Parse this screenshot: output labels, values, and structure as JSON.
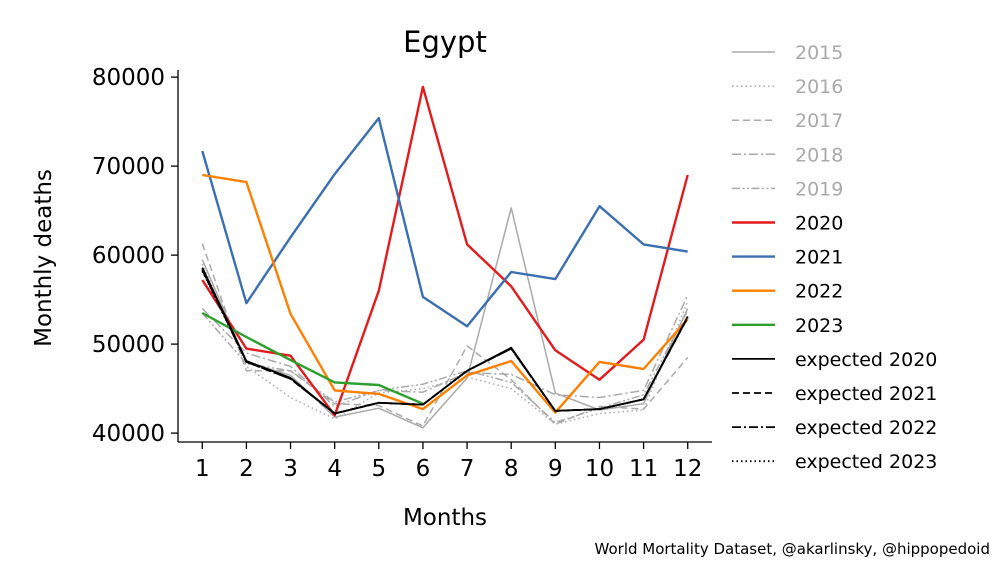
{
  "chart_data": {
    "type": "line",
    "title": "Egypt",
    "xlabel": "Months",
    "ylabel": "Monthly deaths",
    "x": [
      1,
      2,
      3,
      4,
      5,
      6,
      7,
      8,
      9,
      10,
      11,
      12
    ],
    "xlim": [
      0.45,
      12.55
    ],
    "ylim": [
      39000,
      80800
    ],
    "yticks": [
      40000,
      50000,
      60000,
      70000,
      80000
    ],
    "grid": false,
    "legend_placement": "outside-right",
    "series": [
      {
        "name": "2015",
        "style": "solid",
        "color": "#aaaaaa",
        "width": 1.5,
        "legend_faded": true,
        "values": [
          59500,
          48000,
          46500,
          41800,
          42800,
          40600,
          46200,
          65300,
          44500,
          42600,
          43300,
          54000
        ]
      },
      {
        "name": "2016",
        "style": "dotted",
        "color": "#aaaaaa",
        "width": 1.5,
        "legend_faded": true,
        "values": [
          59000,
          47500,
          44000,
          41600,
          44500,
          45000,
          46300,
          45000,
          41000,
          42200,
          42600,
          54800
        ]
      },
      {
        "name": "2017",
        "style": "dashed",
        "color": "#aaaaaa",
        "width": 1.5,
        "legend_faded": true,
        "values": [
          61300,
          47000,
          47000,
          43300,
          43100,
          40800,
          49800,
          46000,
          41000,
          43000,
          42700,
          48500
        ]
      },
      {
        "name": "2018",
        "style": "dashdot",
        "color": "#aaaaaa",
        "width": 1.5,
        "legend_faded": true,
        "values": [
          54000,
          49000,
          47500,
          43000,
          44800,
          44600,
          46800,
          46600,
          44300,
          44000,
          44800,
          55500
        ]
      },
      {
        "name": "2019",
        "style": "dashdotdot",
        "color": "#aaaaaa",
        "width": 1.5,
        "legend_faded": true,
        "values": [
          53500,
          47800,
          47000,
          43500,
          44800,
          45500,
          47000,
          45700,
          41200,
          42800,
          44300,
          53800
        ]
      },
      {
        "name": "2020",
        "style": "solid",
        "color": "#e41a1c",
        "width": 2.4,
        "values": [
          57200,
          49500,
          48700,
          42000,
          56000,
          78900,
          61200,
          56500,
          49300,
          46000,
          50500,
          69000
        ]
      },
      {
        "name": "2021",
        "style": "solid",
        "color": "#3a6fb0",
        "width": 2.4,
        "values": [
          71700,
          54600,
          62000,
          69100,
          75400,
          55300,
          52000,
          58100,
          57300,
          65500,
          61200,
          60400
        ]
      },
      {
        "name": "2022",
        "style": "solid",
        "color": "#ff7f00",
        "width": 2.4,
        "values": [
          69000,
          68200,
          53400,
          44800,
          44400,
          42700,
          46500,
          48100,
          42300,
          48000,
          47200,
          52800
        ]
      },
      {
        "name": "2023",
        "style": "solid",
        "color": "#2ca02c",
        "width": 2.4,
        "values": [
          53500,
          50800,
          48200,
          45700,
          45400,
          43300,
          null,
          null,
          null,
          null,
          null,
          null
        ]
      },
      {
        "name": "expected 2020",
        "style": "solid",
        "color": "#000000",
        "width": 1.8,
        "values": [
          58600,
          48100,
          46200,
          42200,
          43400,
          43200,
          47000,
          49600,
          42500,
          42700,
          43800,
          53100
        ]
      },
      {
        "name": "expected 2021",
        "style": "dashed",
        "color": "#000000",
        "width": 1.8,
        "values": [
          58400,
          48000,
          46100,
          42200,
          43400,
          43200,
          47000,
          49500,
          42500,
          42700,
          43800,
          53000
        ]
      },
      {
        "name": "expected 2022",
        "style": "dashdot",
        "color": "#000000",
        "width": 1.8,
        "values": [
          58300,
          48000,
          46100,
          42200,
          43400,
          43200,
          47000,
          49500,
          42500,
          42700,
          43800,
          53000
        ]
      },
      {
        "name": "expected 2023",
        "style": "dotted",
        "color": "#000000",
        "width": 1.8,
        "values": [
          58200,
          48000,
          46100,
          42200,
          43400,
          43200,
          47000,
          49500,
          42500,
          42700,
          43800,
          53000
        ]
      }
    ]
  },
  "credit": "World Mortality Dataset, @akarlinsky, @hippopedoid"
}
